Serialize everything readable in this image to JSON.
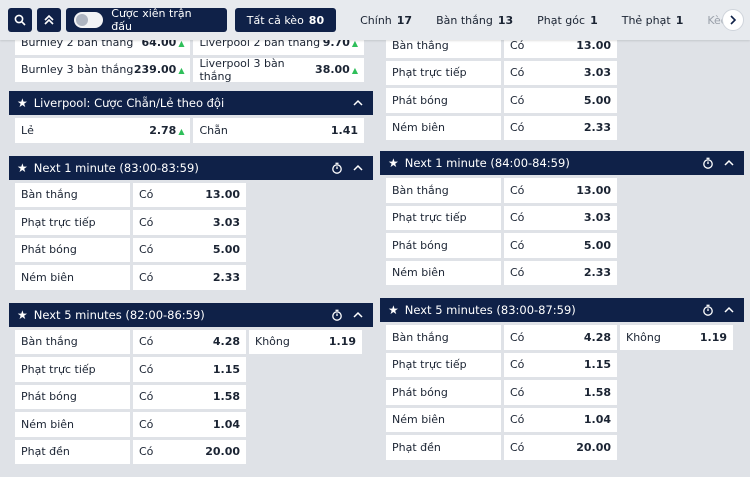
{
  "toolbar": {
    "parlay_label": "Cược xiên trận đấu"
  },
  "tabs": [
    {
      "label": "Tất cả kèo",
      "count": "80"
    },
    {
      "label": "Chính",
      "count": "17"
    },
    {
      "label": "Bàn thắng",
      "count": "13"
    },
    {
      "label": "Phạt góc",
      "count": "1"
    },
    {
      "label": "Thẻ phạt",
      "count": "1"
    },
    {
      "label": "Kèo n",
      "count": ""
    }
  ],
  "top_left_rows": [
    {
      "l1": "Burnley 2 bàn thắng",
      "v1": "64.00",
      "l2": "Liverpool 2 bàn thắng",
      "v2": "9.70"
    },
    {
      "l1": "Burnley 3 bàn thắng",
      "v1": "239.00",
      "l2": "Liverpool 3 bàn thắng",
      "v2": "38.00"
    }
  ],
  "odd_even": {
    "title": "Liverpool: Cược Chẵn/Lẻ theo đội",
    "odd_label": "Lẻ",
    "odd_value": "2.78",
    "even_label": "Chẵn",
    "even_value": "1.41"
  },
  "top_right_rows": [
    {
      "label": "Bàn thắng",
      "opt": "Có",
      "val": "13.00"
    },
    {
      "label": "Phạt trực tiếp",
      "opt": "Có",
      "val": "3.03"
    },
    {
      "label": "Phát bóng",
      "opt": "Có",
      "val": "5.00"
    },
    {
      "label": "Ném biên",
      "opt": "Có",
      "val": "2.33"
    }
  ],
  "next1_left": {
    "title": "Next 1 minute (83:00-83:59)",
    "rows": [
      {
        "label": "Bàn thắng",
        "opt": "Có",
        "val": "13.00"
      },
      {
        "label": "Phạt trực tiếp",
        "opt": "Có",
        "val": "3.03"
      },
      {
        "label": "Phát bóng",
        "opt": "Có",
        "val": "5.00"
      },
      {
        "label": "Ném biên",
        "opt": "Có",
        "val": "2.33"
      }
    ]
  },
  "next1_right": {
    "title": "Next 1 minute (84:00-84:59)",
    "rows": [
      {
        "label": "Bàn thắng",
        "opt": "Có",
        "val": "13.00"
      },
      {
        "label": "Phạt trực tiếp",
        "opt": "Có",
        "val": "3.03"
      },
      {
        "label": "Phát bóng",
        "opt": "Có",
        "val": "5.00"
      },
      {
        "label": "Ném biên",
        "opt": "Có",
        "val": "2.33"
      }
    ]
  },
  "next5_left": {
    "title": "Next 5 minutes (82:00-86:59)",
    "rows": [
      {
        "label": "Bàn thắng",
        "opt": "Có",
        "val": "4.28",
        "opt2": "Không",
        "val2": "1.19"
      },
      {
        "label": "Phạt trực tiếp",
        "opt": "Có",
        "val": "1.15"
      },
      {
        "label": "Phát bóng",
        "opt": "Có",
        "val": "1.58"
      },
      {
        "label": "Ném biên",
        "opt": "Có",
        "val": "1.04"
      },
      {
        "label": "Phạt đền",
        "opt": "Có",
        "val": "20.00"
      }
    ]
  },
  "next5_right": {
    "title": "Next 5 minutes (83:00-87:59)",
    "rows": [
      {
        "label": "Bàn thắng",
        "opt": "Có",
        "val": "4.28",
        "opt2": "Không",
        "val2": "1.19"
      },
      {
        "label": "Phạt trực tiếp",
        "opt": "Có",
        "val": "1.15"
      },
      {
        "label": "Phát bóng",
        "opt": "Có",
        "val": "1.58"
      },
      {
        "label": "Ném biên",
        "opt": "Có",
        "val": "1.04"
      },
      {
        "label": "Phạt đền",
        "opt": "Có",
        "val": "20.00"
      }
    ]
  },
  "colors": {
    "header_bg": "#0f2148",
    "page_bg": "#dfe2e7",
    "up_arrow": "#2fbf5a"
  }
}
